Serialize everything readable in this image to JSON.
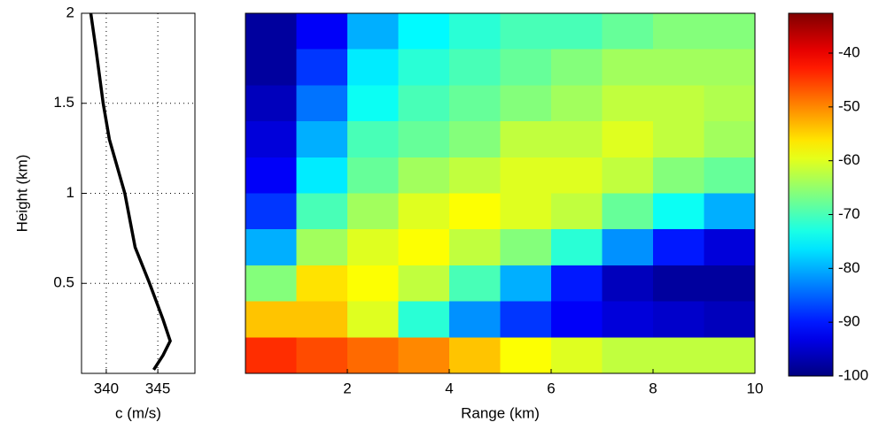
{
  "chart_data": [
    {
      "type": "line",
      "ylabel": "Height (km)",
      "xlabel": "c (m/s)",
      "x": [
        344.6,
        345.5,
        346.2,
        345.5,
        344.2,
        342.8,
        341.8,
        340.3,
        339.7,
        339.0,
        338.5
      ],
      "values": [
        0.02,
        0.1,
        0.18,
        0.3,
        0.5,
        0.7,
        1.0,
        1.3,
        1.5,
        1.8,
        2.0
      ],
      "color": "#000000",
      "xlim": [
        337.6,
        348.6
      ],
      "xticks": [
        340,
        345
      ],
      "ylim": [
        0,
        2
      ],
      "yticks": [
        0.5,
        1,
        1.5,
        2
      ],
      "grid": true
    },
    {
      "type": "heatmap",
      "xlabel": "Range (km)",
      "colormap": "jet",
      "x": [
        0.5,
        1.5,
        2.5,
        3.5,
        4.5,
        5.5,
        6.5,
        7.5,
        8.5,
        9.5
      ],
      "y": [
        1.9,
        1.7,
        1.5,
        1.3,
        1.1,
        0.9,
        0.7,
        0.5,
        0.3,
        0.1
      ],
      "z": [
        [
          -98,
          -92,
          -80,
          -75,
          -72,
          -70,
          -70,
          -68,
          -66,
          -66
        ],
        [
          -98,
          -88,
          -76,
          -72,
          -70,
          -68,
          -66,
          -64,
          -64,
          -64
        ],
        [
          -96,
          -84,
          -74,
          -70,
          -68,
          -66,
          -64,
          -62,
          -62,
          -63
        ],
        [
          -94,
          -80,
          -70,
          -68,
          -66,
          -62,
          -62,
          -60,
          -62,
          -64
        ],
        [
          -92,
          -76,
          -68,
          -64,
          -62,
          -60,
          -60,
          -62,
          -66,
          -68
        ],
        [
          -88,
          -70,
          -64,
          -60,
          -58,
          -60,
          -62,
          -68,
          -74,
          -80
        ],
        [
          -80,
          -64,
          -60,
          -58,
          -62,
          -66,
          -72,
          -82,
          -90,
          -94
        ],
        [
          -66,
          -56,
          -58,
          -62,
          -70,
          -80,
          -90,
          -96,
          -98,
          -98
        ],
        [
          -54,
          -54,
          -60,
          -72,
          -82,
          -88,
          -92,
          -94,
          -95,
          -96
        ],
        [
          -44,
          -46,
          -48,
          -50,
          -54,
          -58,
          -60,
          -62,
          -62,
          -62
        ]
      ],
      "xlim": [
        0,
        10
      ],
      "xticks": [
        2,
        4,
        6,
        8,
        10
      ],
      "ylim": [
        0,
        2
      ],
      "clim": [
        -100,
        -32.6
      ],
      "cticks": [
        -40,
        -50,
        -60,
        -70,
        -80,
        -90,
        -100
      ]
    }
  ]
}
